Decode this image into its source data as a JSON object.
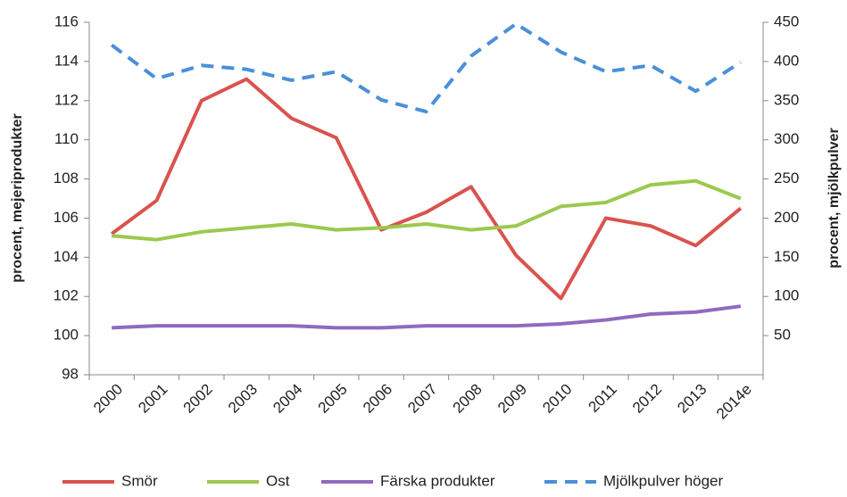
{
  "chart_data": {
    "type": "line",
    "categories": [
      "2000",
      "2001",
      "2002",
      "2003",
      "2004",
      "2005",
      "2006",
      "2007",
      "2008",
      "2009",
      "2010",
      "2011",
      "2012",
      "2013",
      "2014e"
    ],
    "y_label": "procent, mejeriprodukter",
    "y2_label": "procent, mjölkpulver",
    "ylim": [
      98,
      116
    ],
    "yticks": [
      98,
      100,
      102,
      104,
      106,
      108,
      110,
      112,
      114,
      116
    ],
    "y2lim": [
      0,
      450
    ],
    "y2ticks": [
      50,
      100,
      150,
      200,
      250,
      300,
      350,
      400,
      450
    ],
    "series": [
      {
        "name": "Smör",
        "color": "#d9534f",
        "values": [
          105.2,
          106.9,
          112,
          113.1,
          111.1,
          110.1,
          105.4,
          106.3,
          107.6,
          104.1,
          101.9,
          106,
          105.6,
          104.6,
          106.5
        ]
      },
      {
        "name": "Ost",
        "color": "#9bc94f",
        "values": [
          105.1,
          104.9,
          105.3,
          105.5,
          105.7,
          105.4,
          105.5,
          105.7,
          105.4,
          105.6,
          106.6,
          106.8,
          107.7,
          107.9,
          107.0
        ]
      },
      {
        "name": "Färska produkter",
        "color": "#8e6bbf",
        "values": [
          100.4,
          100.5,
          100.5,
          100.5,
          100.5,
          100.4,
          100.4,
          100.5,
          100.5,
          100.5,
          100.6,
          100.8,
          101.1,
          101.2,
          101.5
        ]
      },
      {
        "name": "Mjölkpulver höger",
        "color": "#4a90d9",
        "dashed": true,
        "axis": "y2",
        "values": [
          421,
          378,
          395,
          390,
          376,
          387,
          351,
          336,
          407,
          448,
          412,
          387,
          395,
          362,
          399
        ]
      }
    ]
  }
}
